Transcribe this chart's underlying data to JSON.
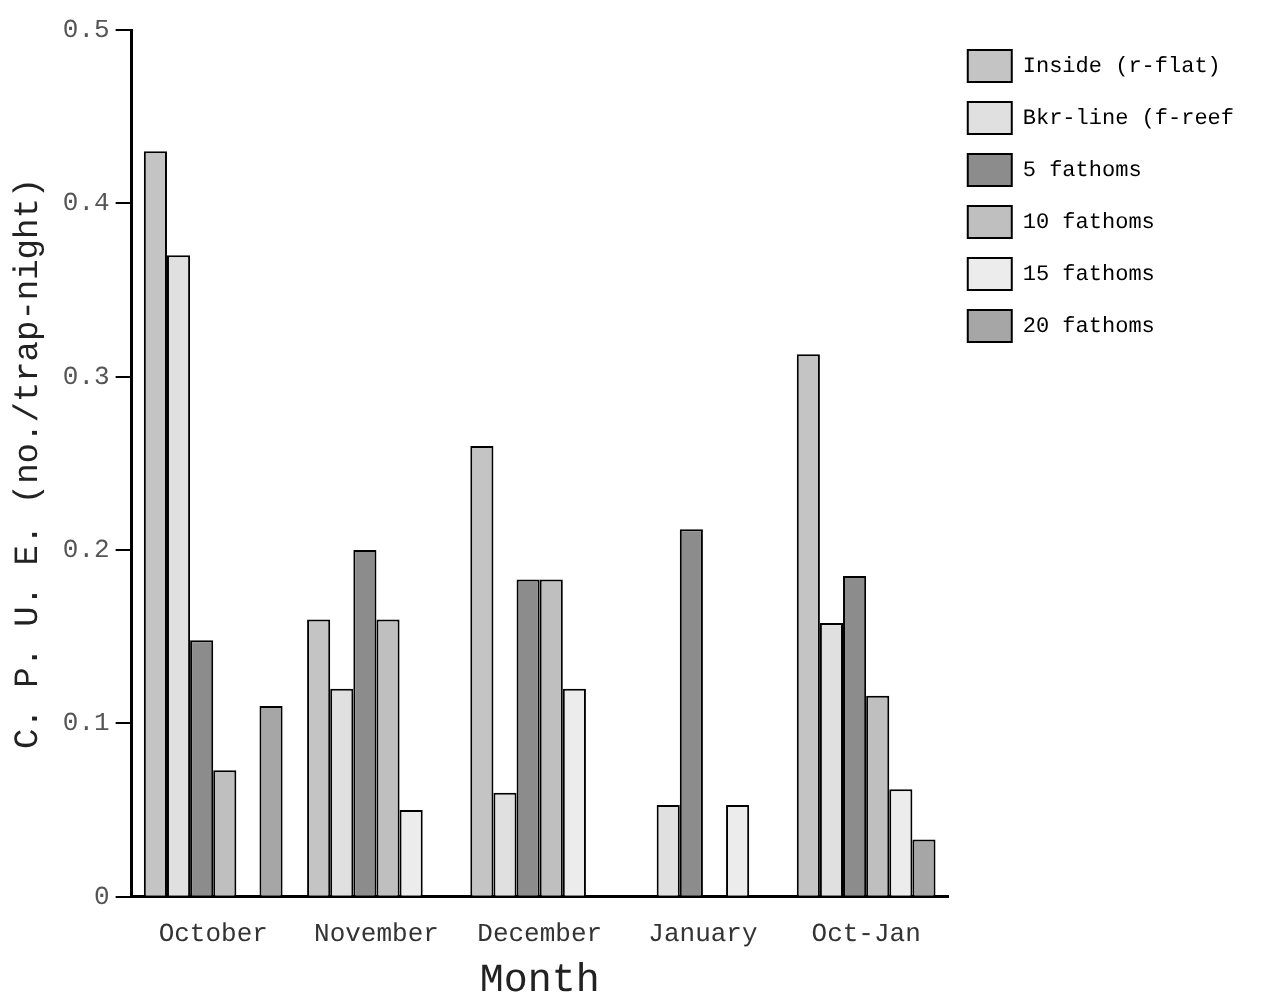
{
  "chart_data": {
    "type": "bar",
    "xlabel": "Month",
    "ylabel": "C. P. U. E. (no./trap-night)",
    "categories": [
      "October",
      "November",
      "December",
      "January",
      "Oct-Jan"
    ],
    "series": [
      {
        "name": "Inside (r-flat)",
        "color": "#c4c4c4",
        "values": [
          0.43,
          0.16,
          0.26,
          0,
          0.313
        ]
      },
      {
        "name": "Bkr-line (f-reef",
        "color": "#e0e0e0",
        "values": [
          0.37,
          0.12,
          0.06,
          0.053,
          0.158
        ]
      },
      {
        "name": "5 fathoms",
        "color": "#8c8c8c",
        "values": [
          0.148,
          0.2,
          0.183,
          0.212,
          0.185
        ]
      },
      {
        "name": "10 fathoms",
        "color": "#bfbfbf",
        "values": [
          0.073,
          0.16,
          0.183,
          0,
          0.116
        ]
      },
      {
        "name": "15 fathoms",
        "color": "#ececec",
        "values": [
          0,
          0.05,
          0.12,
          0.053,
          0.062
        ]
      },
      {
        "name": "20 fathoms",
        "color": "#a6a6a6",
        "values": [
          0.11,
          0,
          0,
          0,
          0.033
        ]
      }
    ],
    "ylim": [
      0,
      0.5
    ],
    "yticks": [
      0,
      0.1,
      0.2,
      0.3,
      0.4,
      0.5
    ],
    "grid": false,
    "legend": "right"
  }
}
